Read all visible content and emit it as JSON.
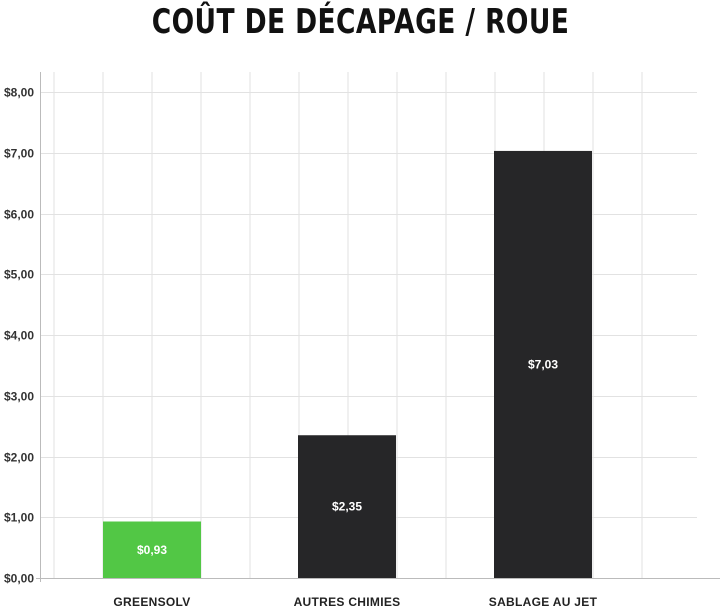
{
  "chart_data": {
    "type": "bar",
    "title": "COÛT DE DÉCAPAGE / ROUE",
    "xlabel": "",
    "ylabel": "",
    "categories": [
      "GREENSOLV",
      "AUTRES CHIMIES",
      "SABLAGE AU JET"
    ],
    "values": [
      0.93,
      2.35,
      7.03
    ],
    "value_labels": [
      "$0,93",
      "$2,35",
      "$7,03"
    ],
    "bar_colors": [
      "#52c745",
      "#262628",
      "#262628"
    ],
    "ylim": [
      0,
      8
    ],
    "yticks": [
      0,
      1,
      2,
      3,
      4,
      5,
      6,
      7,
      8
    ],
    "ytick_labels": [
      "$0,00",
      "$1,00",
      "$2,00",
      "$3,00",
      "$4,00",
      "$5,00",
      "$6,00",
      "$7,00",
      "$8,00"
    ],
    "grid": true,
    "legend": "none"
  },
  "colors": {
    "grid": "#e2e2e2",
    "axis": "#bbbbbb"
  }
}
